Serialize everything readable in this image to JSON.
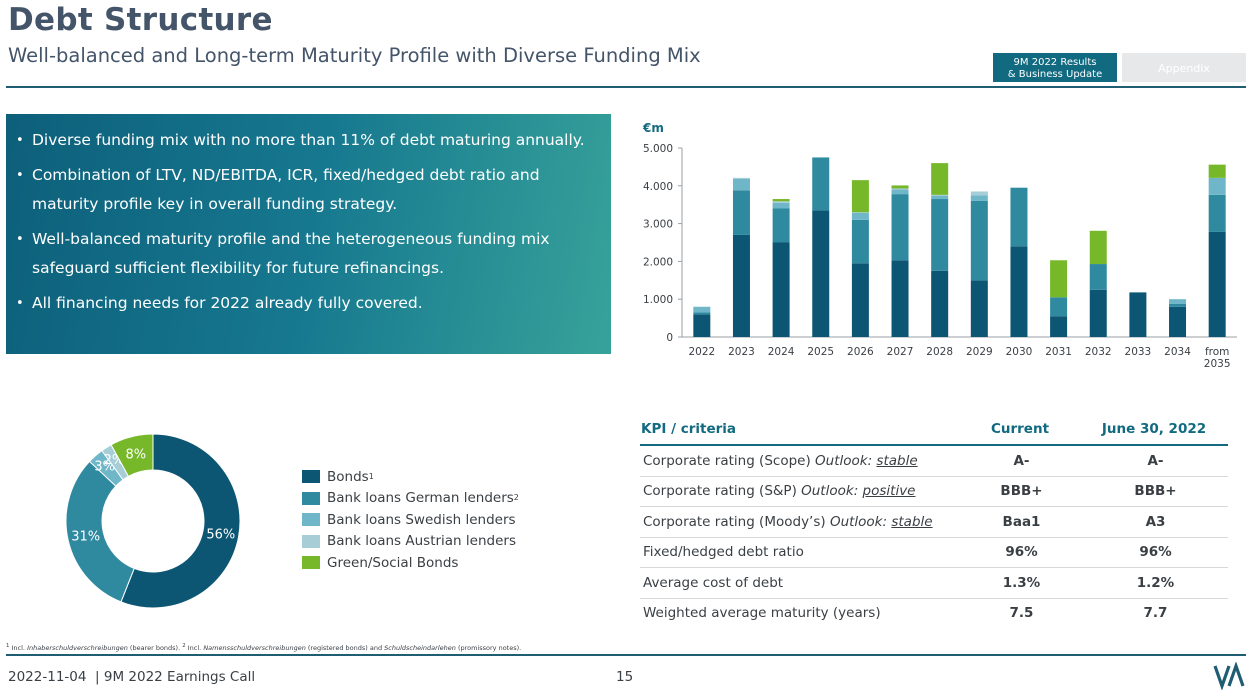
{
  "header": {
    "title": "Debt Structure",
    "subtitle": "Well-balanced and Long-term Maturity Profile with Diverse Funding Mix",
    "tab_active_line1": "9M 2022 Results",
    "tab_active_line2": "& Business Update",
    "tab_inactive": "Appendix"
  },
  "bullets": [
    "Diverse funding mix with no more than 11% of debt maturing annually.",
    "Combination of LTV, ND/EBITDA, ICR, fixed/hedged debt ratio and maturity profile key in overall funding strategy.",
    "Well-balanced maturity profile and the heterogeneous funding mix safeguard sufficient flexibility for future refinancings.",
    "All financing needs for 2022 already fully covered."
  ],
  "colors": {
    "bonds": "#0c5673",
    "bank_german": "#2f8aa0",
    "bank_swedish": "#6eb6c8",
    "bank_austrian": "#a7cdd7",
    "green_social": "#76b82a"
  },
  "chart_data": [
    {
      "type": "bar",
      "stacked": true,
      "unit_label": "€m",
      "categories": [
        "2022",
        "2023",
        "2024",
        "2025",
        "2026",
        "2027",
        "2028",
        "2029",
        "2030",
        "2031",
        "2032",
        "2033",
        "2034",
        "from 2035"
      ],
      "y_ticks": [
        "0",
        "1.000",
        "2.000",
        "3.000",
        "4.000",
        "5.000"
      ],
      "ylim": [
        0,
        5000
      ],
      "series": [
        {
          "name": "Bonds",
          "color": "#0c5673",
          "values": [
            600,
            2700,
            2500,
            3350,
            1950,
            2030,
            1750,
            1500,
            2400,
            550,
            1250,
            1180,
            800,
            2780
          ]
        },
        {
          "name": "Bank loans German lenders",
          "color": "#2f8aa0",
          "values": [
            50,
            1180,
            900,
            1400,
            1150,
            1750,
            1900,
            2100,
            1550,
            500,
            680,
            0,
            80,
            980
          ]
        },
        {
          "name": "Bank loans Swedish lenders",
          "color": "#6eb6c8",
          "values": [
            150,
            300,
            150,
            0,
            180,
            120,
            80,
            150,
            0,
            0,
            0,
            0,
            120,
            450
          ]
        },
        {
          "name": "Bank loans Austrian lenders",
          "color": "#a7cdd7",
          "values": [
            0,
            30,
            40,
            0,
            20,
            30,
            30,
            100,
            0,
            0,
            0,
            0,
            0,
            0
          ]
        },
        {
          "name": "Green/Social Bonds",
          "color": "#76b82a",
          "values": [
            0,
            0,
            60,
            0,
            850,
            80,
            840,
            0,
            0,
            980,
            880,
            0,
            0,
            350
          ]
        }
      ]
    },
    {
      "type": "pie",
      "donut": true,
      "categories": [
        "Bonds",
        "Bank loans German lenders",
        "Bank loans Swedish lenders",
        "Bank loans Austrian lenders",
        "Green/Social Bonds"
      ],
      "values": [
        56,
        31,
        3,
        2,
        8
      ],
      "labels": [
        "56%",
        "31%",
        "3%",
        "2%",
        "8%"
      ],
      "colors": [
        "#0c5673",
        "#2f8aa0",
        "#6eb6c8",
        "#a7cdd7",
        "#76b82a"
      ]
    }
  ],
  "legend": [
    {
      "label": "Bonds",
      "sup": "1",
      "color": "#0c5673"
    },
    {
      "label": "Bank loans German lenders",
      "sup": "2",
      "color": "#2f8aa0"
    },
    {
      "label": "Bank loans Swedish lenders",
      "sup": "",
      "color": "#6eb6c8"
    },
    {
      "label": "Bank loans Austrian lenders",
      "sup": "",
      "color": "#a7cdd7"
    },
    {
      "label": "Green/Social Bonds",
      "sup": "",
      "color": "#76b82a"
    }
  ],
  "kpi_table": {
    "headers": [
      "KPI / criteria",
      "Current",
      "June 30, 2022"
    ],
    "rows": [
      {
        "label": "Corporate rating (Scope) ",
        "outlook": "Outlook: ",
        "outlook_value": "stable",
        "current": "A-",
        "previous": "A-"
      },
      {
        "label": "Corporate rating (S&P) ",
        "outlook": "Outlook: ",
        "outlook_value": "positive",
        "current": "BBB+",
        "previous": "BBB+"
      },
      {
        "label": "Corporate rating (Moody’s) ",
        "outlook": "Outlook: ",
        "outlook_value": "stable",
        "current": "Baa1",
        "previous": "A3"
      },
      {
        "label": "Fixed/hedged debt ratio",
        "outlook": "",
        "outlook_value": "",
        "current": "96%",
        "previous": "96%"
      },
      {
        "label": "Average cost of debt",
        "outlook": "",
        "outlook_value": "",
        "current": "1.3%",
        "previous": "1.2%"
      },
      {
        "label": "Weighted average maturity (years)",
        "outlook": "",
        "outlook_value": "",
        "current": "7.5",
        "previous": "7.7"
      }
    ]
  },
  "footnote": {
    "n1": "1",
    "p1": " Incl. ",
    "i1": "Inhaberschuldverschreibungen",
    "p2": " (bearer bonds). ",
    "n2": "2",
    "p3": " Incl. ",
    "i2": "Namensschuldverschreibungen",
    "p4": " (registered bonds) and ",
    "i3": "Schuldscheindarlehen",
    "p5": " (promissory notes)."
  },
  "footer": {
    "left": "2022-11-04  | 9M 2022 Earnings Call",
    "page_number": "15"
  }
}
